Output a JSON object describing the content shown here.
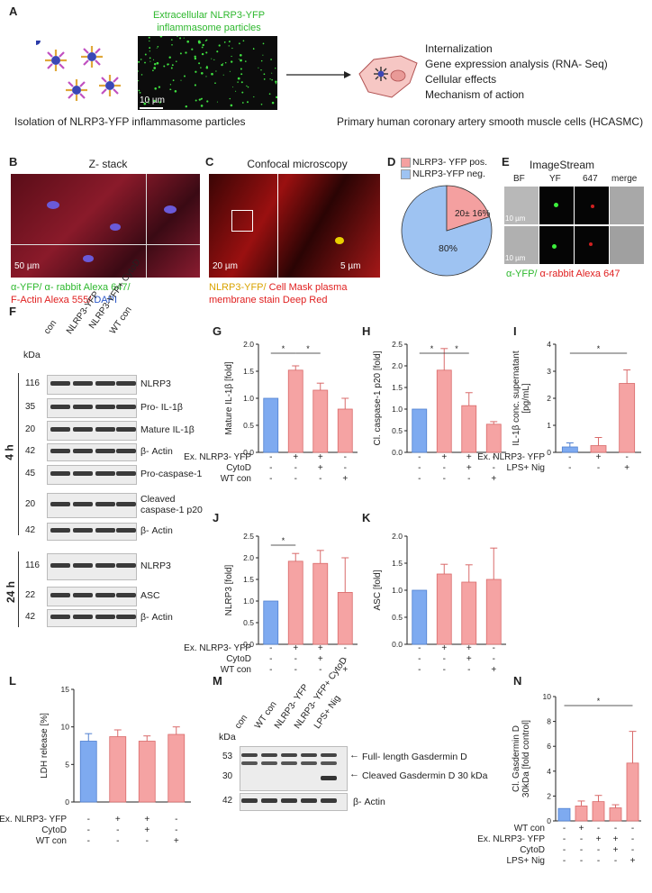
{
  "panels": {
    "A": "A",
    "B": "B",
    "C": "C",
    "D": "D",
    "E": "E",
    "F": "F",
    "G": "G",
    "H": "H",
    "I": "I",
    "J": "J",
    "K": "K",
    "L": "L",
    "M": "M",
    "N": "N"
  },
  "panelA": {
    "particles_title": "Extracellular NLRP3-YFP\ninflammasome particles",
    "scale": "10 µm",
    "isolation": "Isolation of NLRP3-YFP inflammasome particles",
    "cells": "Primary human coronary artery smooth muscle cells (HCASMC)",
    "list": [
      "Internalization",
      "Gene expression analysis (RNA- Seq)",
      "Cellular effects",
      "Mechanism of action"
    ]
  },
  "panelB": {
    "title": "Z- stack",
    "scale": "50 µm",
    "legend_green": "α-YFP/ α- rabbit Alexa 647/",
    "legend_red": "F-Actin Alexa 555/",
    "legend_blue": " DAPI"
  },
  "panelC": {
    "title": "Confocal microscopy",
    "scale1": "20 µm",
    "scale2": "5 µm",
    "legend_yellow": "NLRP3-YFP/",
    "legend_red": " Cell Mask plasma membrane stain Deep Red"
  },
  "panelD": {
    "legend_pos": "NLRP3- YFP pos.",
    "legend_neg": "NLRP3-YFP neg.",
    "label_pos": "20± 16%",
    "label_neg": "80%",
    "colors": {
      "pos": "#f4a0a0",
      "neg": "#9ec3f2"
    }
  },
  "panelE": {
    "title": "ImageStream",
    "cols": [
      "BF",
      "YF",
      "647",
      "merge"
    ],
    "scale1": "10 µm",
    "scale2": "10 µm",
    "legend_green": "α-YFP/",
    "legend_red": " α-rabbit Alexa 647"
  },
  "panelF": {
    "kda": "kDa",
    "lanes": [
      "con",
      "NLRP3-YFP",
      "NLRP3-YFP+ CytoD",
      "WT con"
    ],
    "time1": "4 h",
    "time2": "24 h",
    "rows": [
      {
        "kda": "116",
        "label": "NLRP3"
      },
      {
        "kda": "35",
        "label": "Pro- IL-1β"
      },
      {
        "kda": "20",
        "label": "Mature IL-1β"
      },
      {
        "kda": "42",
        "label": "β- Actin"
      },
      {
        "kda": "45",
        "label": "Pro-caspase-1"
      },
      {
        "kda": "20",
        "label": "Cleaved\ncaspase-1 p20"
      },
      {
        "kda": "42",
        "label": "β- Actin"
      },
      {
        "kda": "116",
        "label": "NLRP3"
      },
      {
        "kda": "22",
        "label": "ASC"
      },
      {
        "kda": "42",
        "label": "β- Actin"
      }
    ]
  },
  "panelM": {
    "kda": "kDa",
    "lanes": [
      "con",
      "WT con",
      "NLRP3- YFP",
      "NLRP3- YFP+ CytoD",
      "LPS+ Nig"
    ],
    "rows": [
      {
        "kda": "53"
      },
      {
        "kda": "30"
      },
      {
        "kda": "42"
      }
    ],
    "full": "Full- length Gasdermin D",
    "cleaved": "Cleaved Gasdermin D 30 kDa",
    "actin": "β- Actin"
  },
  "chart_data": [
    {
      "panel": "G",
      "type": "bar",
      "ylabel": "Mature IL-1β [fold]",
      "ylim": [
        0,
        2.0
      ],
      "yticks": [
        "0.0",
        "0.5",
        "1.0",
        "1.5",
        "2.0"
      ],
      "values": [
        1.0,
        1.52,
        1.15,
        0.8
      ],
      "errors": [
        0,
        0.08,
        0.13,
        0.2
      ],
      "rows": [
        {
          "name": "Ex. NLRP3- YFP",
          "marks": [
            "-",
            "+",
            "+",
            "-"
          ]
        },
        {
          "name": "CytoD",
          "marks": [
            "-",
            "-",
            "+",
            "-"
          ]
        },
        {
          "name": "WT con",
          "marks": [
            "-",
            "-",
            "-",
            "+"
          ]
        }
      ],
      "sig": [
        [
          0,
          1
        ],
        [
          1,
          2
        ]
      ]
    },
    {
      "panel": "H",
      "type": "bar",
      "ylabel": "Cl. caspase-1 p20 [fold]",
      "ylim": [
        0,
        2.5
      ],
      "yticks": [
        "0.0",
        "0.5",
        "1.0",
        "1.5",
        "2.0",
        "2.5"
      ],
      "values": [
        1.0,
        1.9,
        1.08,
        0.65
      ],
      "errors": [
        0,
        0.5,
        0.3,
        0.06
      ],
      "rows": [
        {
          "name": "",
          "marks": [
            "-",
            "+",
            "+",
            "-"
          ]
        },
        {
          "name": "",
          "marks": [
            "-",
            "-",
            "+",
            "-"
          ]
        },
        {
          "name": "",
          "marks": [
            "-",
            "-",
            "-",
            "+"
          ]
        }
      ],
      "sig": [
        [
          0,
          1
        ],
        [
          1,
          2
        ]
      ]
    },
    {
      "panel": "I",
      "type": "bar",
      "ylabel": "IL-1β conc. supernatant\n[pg/mL]",
      "ylim": [
        0,
        4
      ],
      "yticks": [
        "0",
        "1",
        "2",
        "3",
        "4"
      ],
      "values": [
        0.2,
        0.25,
        2.55
      ],
      "errors": [
        0.15,
        0.3,
        0.5
      ],
      "rows": [
        {
          "name": "Ex. NLRP3- YFP",
          "marks": [
            "-",
            "+",
            "-"
          ]
        },
        {
          "name": "LPS+ Nig",
          "marks": [
            "-",
            "-",
            "+"
          ]
        }
      ],
      "sig": [
        [
          0,
          2
        ]
      ]
    },
    {
      "panel": "J",
      "type": "bar",
      "ylabel": "NLRP3 [fold]",
      "ylim": [
        0,
        2.5
      ],
      "yticks": [
        "0.0",
        "0.5",
        "1.0",
        "1.5",
        "2.0",
        "2.5"
      ],
      "values": [
        1.0,
        1.92,
        1.87,
        1.2
      ],
      "errors": [
        0,
        0.18,
        0.3,
        0.8
      ],
      "rows": [
        {
          "name": "Ex. NLRP3- YFP",
          "marks": [
            "-",
            "+",
            "+",
            "-"
          ]
        },
        {
          "name": "CytoD",
          "marks": [
            "-",
            "-",
            "+",
            "-"
          ]
        },
        {
          "name": "WT con",
          "marks": [
            "-",
            "-",
            "-",
            "+"
          ]
        }
      ],
      "sig": [
        [
          0,
          1
        ]
      ]
    },
    {
      "panel": "K",
      "type": "bar",
      "ylabel": "ASC [fold]",
      "ylim": [
        0,
        2.0
      ],
      "yticks": [
        "0.0",
        "0.5",
        "1.0",
        "1.5",
        "2.0"
      ],
      "values": [
        1.0,
        1.3,
        1.15,
        1.2
      ],
      "errors": [
        0,
        0.18,
        0.32,
        0.58
      ],
      "rows": [
        {
          "name": "",
          "marks": [
            "-",
            "+",
            "+",
            "-"
          ]
        },
        {
          "name": "",
          "marks": [
            "-",
            "-",
            "+",
            "-"
          ]
        },
        {
          "name": "",
          "marks": [
            "-",
            "-",
            "-",
            "+"
          ]
        }
      ],
      "sig": []
    },
    {
      "panel": "L",
      "type": "bar",
      "ylabel": "LDH release [%]",
      "ylim": [
        0,
        15
      ],
      "yticks": [
        "0",
        "5",
        "10",
        "15"
      ],
      "values": [
        8.1,
        8.7,
        8.1,
        9.0
      ],
      "errors": [
        1.0,
        0.9,
        0.7,
        1.0
      ],
      "rows": [
        {
          "name": "Ex. NLRP3- YFP",
          "marks": [
            "-",
            "+",
            "+",
            "-"
          ]
        },
        {
          "name": "CytoD",
          "marks": [
            "-",
            "-",
            "+",
            "-"
          ]
        },
        {
          "name": "WT con",
          "marks": [
            "-",
            "-",
            "-",
            "+"
          ]
        }
      ],
      "sig": []
    },
    {
      "panel": "N",
      "type": "bar",
      "ylabel": "Cl. Gasdermin D\n30kDa [fold control]",
      "ylim": [
        0,
        10
      ],
      "yticks": [
        "0",
        "2",
        "4",
        "6",
        "8",
        "10"
      ],
      "values": [
        1.0,
        1.2,
        1.55,
        1.05,
        4.65
      ],
      "errors": [
        0,
        0.4,
        0.5,
        0.25,
        2.55
      ],
      "rows": [
        {
          "name": "WT con",
          "marks": [
            "-",
            "+",
            "-",
            "-",
            "-"
          ]
        },
        {
          "name": "Ex. NLRP3- YFP",
          "marks": [
            "-",
            "-",
            "+",
            "+",
            "-"
          ]
        },
        {
          "name": "CytoD",
          "marks": [
            "-",
            "-",
            "-",
            "+",
            "-"
          ]
        },
        {
          "name": "LPS+ Nig",
          "marks": [
            "-",
            "-",
            "-",
            "-",
            "+"
          ]
        }
      ],
      "sig": [
        [
          0,
          4
        ]
      ]
    }
  ],
  "colors": {
    "control": "#7eaaf0",
    "treated": "#f5a3a3",
    "edge": "#d96a6a"
  }
}
